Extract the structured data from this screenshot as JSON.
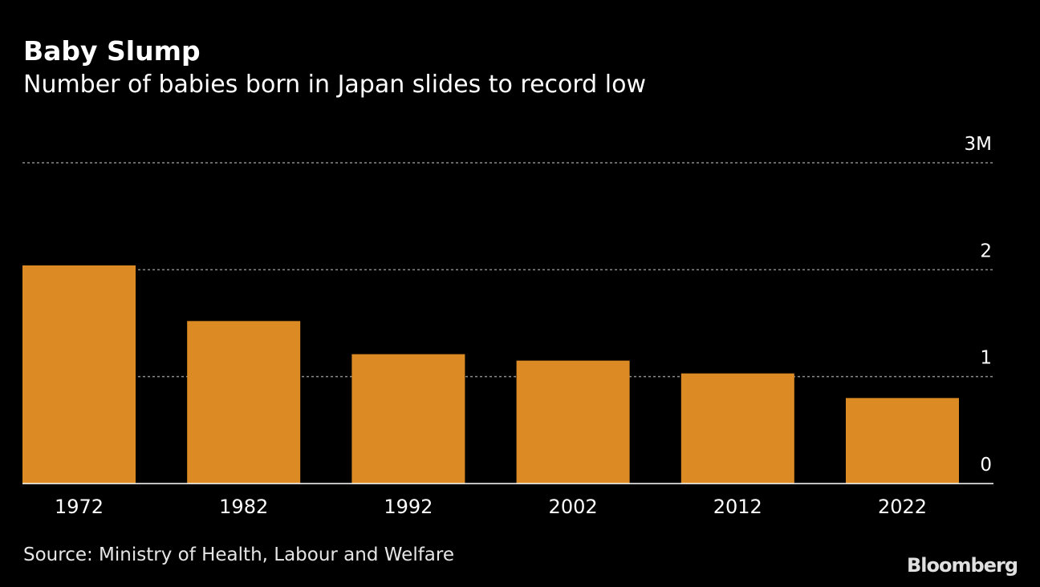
{
  "title": "Baby Slump",
  "subtitle": "Number of babies born in Japan slides to record low",
  "source": "Source: Ministry of Health, Labour and Welfare",
  "brand": "Bloomberg",
  "colors": {
    "background": "#000000",
    "bar": "#dc8b24",
    "text": "#ffffff",
    "muted_text": "#e6e6e6",
    "grid": "#8c8c8c",
    "baseline": "#ffffff"
  },
  "chart_data": {
    "type": "bar",
    "categories": [
      "1972",
      "1982",
      "1992",
      "2002",
      "2012",
      "2022"
    ],
    "values": [
      2.04,
      1.52,
      1.21,
      1.15,
      1.03,
      0.8
    ],
    "unit": "millions of births",
    "ylim": [
      0,
      3
    ],
    "y_ticks": [
      0,
      1,
      2,
      3
    ],
    "y_tick_labels": [
      "0",
      "1",
      "2",
      "3M"
    ],
    "y_axis_position": "right",
    "grid": true,
    "grid_style": "dotted",
    "legend": "none"
  }
}
